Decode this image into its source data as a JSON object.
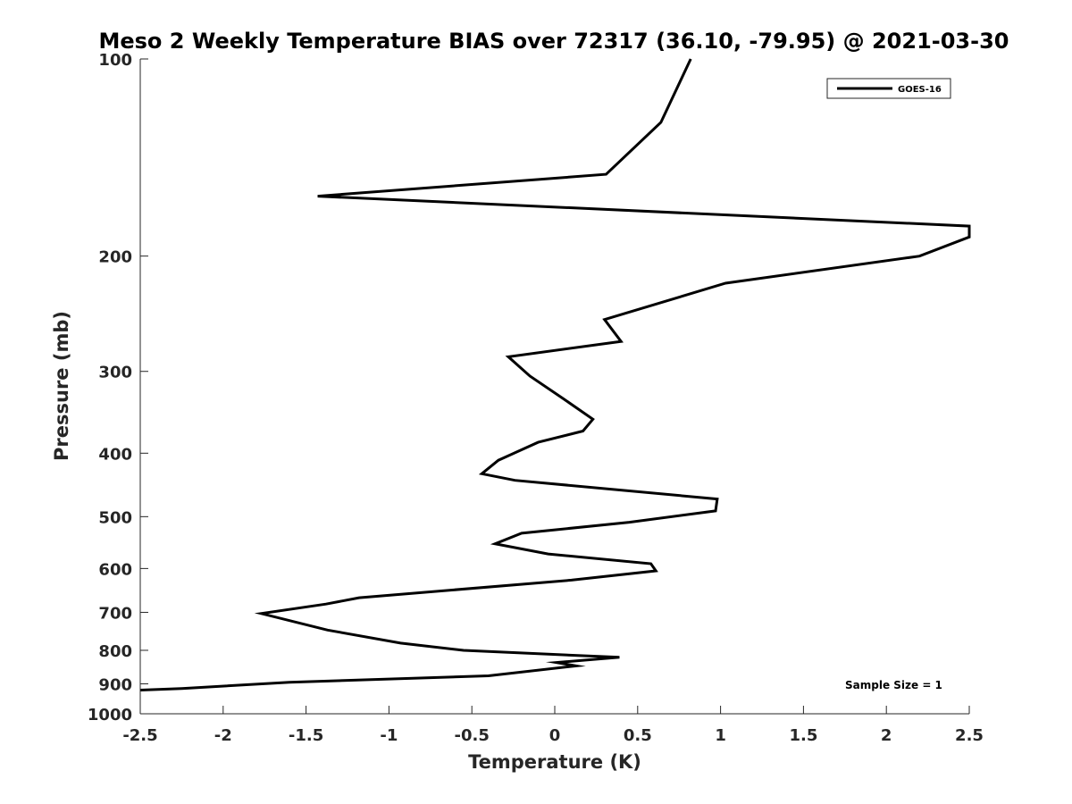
{
  "chart_data": {
    "type": "line",
    "title": "Meso 2 Weekly Temperature BIAS over 72317 (36.10, -79.95) @ 2021-03-30",
    "xlabel": "Temperature (K)",
    "ylabel": "Pressure (mb)",
    "xlim": [
      -2.5,
      2.5
    ],
    "ylim": [
      100,
      1000
    ],
    "yscale": "log",
    "yreversed": true,
    "xticks": [
      -2.5,
      -2,
      -1.5,
      -1,
      -0.5,
      0,
      0.5,
      1,
      1.5,
      2,
      2.5
    ],
    "xtick_labels": [
      "-2.5",
      "-2",
      "-1.5",
      "-1",
      "-0.5",
      "0",
      "0.5",
      "1",
      "1.5",
      "2",
      "2.5"
    ],
    "yticks": [
      100,
      200,
      300,
      400,
      500,
      600,
      700,
      800,
      900,
      1000
    ],
    "ytick_labels": [
      "100",
      "200",
      "300",
      "400",
      "500",
      "600",
      "700",
      "800",
      "900",
      "1000"
    ],
    "grid": false,
    "legend": {
      "placement": "top-right",
      "entries": [
        "GOES-16"
      ]
    },
    "annotation": "Sample Size = 1",
    "line_color": "#000000",
    "series": [
      {
        "name": "GOES-16",
        "points": [
          {
            "x": 0.82,
            "p": 100
          },
          {
            "x": 0.64,
            "p": 125
          },
          {
            "x": 0.31,
            "p": 150
          },
          {
            "x": -1.43,
            "p": 162
          },
          {
            "x": 2.5,
            "p": 180
          },
          {
            "x": 2.5,
            "p": 187
          },
          {
            "x": 2.2,
            "p": 200
          },
          {
            "x": 1.03,
            "p": 220
          },
          {
            "x": 0.3,
            "p": 250
          },
          {
            "x": 0.4,
            "p": 270
          },
          {
            "x": -0.28,
            "p": 285
          },
          {
            "x": -0.15,
            "p": 305
          },
          {
            "x": 0.05,
            "p": 330
          },
          {
            "x": 0.23,
            "p": 355
          },
          {
            "x": 0.17,
            "p": 370
          },
          {
            "x": -0.1,
            "p": 385
          },
          {
            "x": -0.34,
            "p": 410
          },
          {
            "x": -0.44,
            "p": 430
          },
          {
            "x": -0.24,
            "p": 440
          },
          {
            "x": 0.98,
            "p": 470
          },
          {
            "x": 0.97,
            "p": 490
          },
          {
            "x": 0.45,
            "p": 510
          },
          {
            "x": -0.2,
            "p": 530
          },
          {
            "x": -0.36,
            "p": 550
          },
          {
            "x": -0.04,
            "p": 570
          },
          {
            "x": 0.58,
            "p": 590
          },
          {
            "x": 0.61,
            "p": 605
          },
          {
            "x": 0.1,
            "p": 625
          },
          {
            "x": -1.18,
            "p": 665
          },
          {
            "x": -1.38,
            "p": 680
          },
          {
            "x": -1.77,
            "p": 703
          },
          {
            "x": -1.37,
            "p": 745
          },
          {
            "x": -0.93,
            "p": 780
          },
          {
            "x": -0.55,
            "p": 800
          },
          {
            "x": 0.39,
            "p": 820
          },
          {
            "x": 0.01,
            "p": 835
          },
          {
            "x": 0.13,
            "p": 845
          },
          {
            "x": -0.4,
            "p": 875
          },
          {
            "x": -1.6,
            "p": 895
          },
          {
            "x": -2.25,
            "p": 915
          },
          {
            "x": -2.5,
            "p": 920
          }
        ]
      }
    ]
  }
}
